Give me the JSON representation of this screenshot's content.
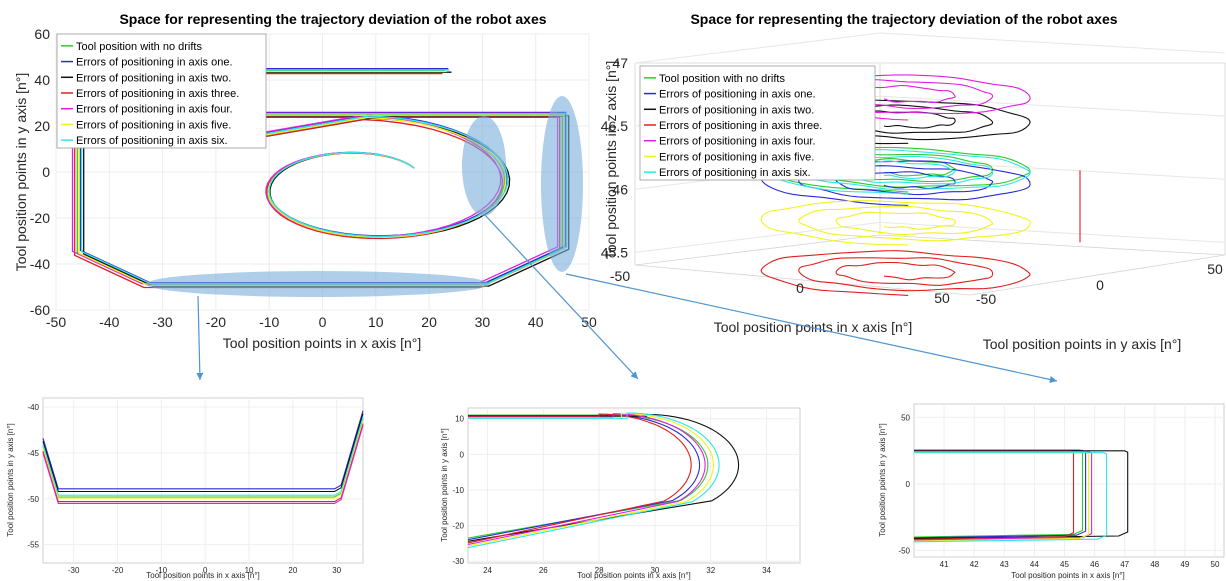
{
  "colors": {
    "no_drift": "#2ecc2e",
    "axis1": "#2b2bd6",
    "axis2": "#111111",
    "axis3": "#e02020",
    "axis4": "#e020e0",
    "axis5": "#f2f21a",
    "axis6": "#2ee6e6",
    "highlight": "#7aaedc",
    "arrow": "#4f95cf"
  },
  "legend": [
    "Tool position with no drifts",
    "Errors of positioning in axis one.",
    "Errors of positioning in axis two.",
    "Errors of positioning in axis three.",
    "Errors of positioning in axis four.",
    "Errors of positioning in axis five.",
    "Errors of positioning in axis six."
  ],
  "chart_data": [
    {
      "id": "main2d",
      "type": "line",
      "title": "Space for representing the trajectory deviation of the robot axes",
      "xlabel": "Tool position points in x axis [n°]",
      "ylabel": "Tool position points in y axis [n°]",
      "xlim": [
        -50,
        50
      ],
      "ylim": [
        -60,
        60
      ],
      "xticks": [
        "-50",
        "-40",
        "-30",
        "-20",
        "-10",
        "0",
        "10",
        "20",
        "30",
        "40",
        "50"
      ],
      "yticks": [
        "60",
        "40",
        "20",
        "0",
        "-20",
        "-40",
        "-60"
      ],
      "grid": true,
      "legend_position": "top-left",
      "offsets": [
        [
          0,
          0
        ],
        [
          0.6,
          0.9
        ],
        [
          1.2,
          -0.6
        ],
        [
          -0.5,
          -1.2
        ],
        [
          -0.9,
          0.5
        ],
        [
          0.3,
          -0.3
        ],
        [
          0.8,
          0.4
        ]
      ],
      "base_path": [
        [
          23,
          44
        ],
        [
          -46,
          44
        ],
        [
          -46,
          -35
        ],
        [
          -33,
          -49
        ],
        [
          30,
          -49
        ],
        [
          45,
          -33
        ],
        [
          45,
          25
        ],
        [
          -35,
          25
        ],
        [
          -35,
          12
        ],
        [
          -22,
          12
        ]
      ],
      "spiral": {
        "center": [
          8,
          -6
        ],
        "r_start": 30,
        "r_end": 12,
        "theta_start": 90,
        "theta_end": -320
      }
    },
    {
      "id": "main3d",
      "type": "line",
      "title": "Space for representing the trajectory deviation of the robot axes",
      "xlabel": "Tool position points in x axis [n°]",
      "ylabel": "Tool position points in y axis [n°]",
      "zlabel": "Tool position points in z axis [n°]",
      "zticks": [
        "47",
        "46.5",
        "46",
        "45.5"
      ],
      "xticks": [
        "-50",
        "0",
        "50"
      ],
      "yticks": [
        "-50",
        "0",
        "50"
      ],
      "zlim": [
        45.4,
        47
      ],
      "grid": true,
      "legend_position": "top-left",
      "layer_z": [
        46.32,
        46.22,
        46.7,
        45.5,
        46.9,
        45.9,
        46.3
      ]
    },
    {
      "id": "inset1",
      "type": "line",
      "xlabel": "Tool position points in x axis [n°]",
      "ylabel": "Tool position points in y axis [n°]",
      "xlim": [
        -37,
        36
      ],
      "ylim": [
        -57,
        -39
      ],
      "xticks": [
        "-30",
        "-20",
        "-10",
        "0",
        "10",
        "20",
        "30"
      ],
      "yticks": [
        "-40",
        "-45",
        "-50",
        "-55"
      ],
      "grid": true,
      "bottom_y": [
        -49.8,
        -48.9,
        -49.2,
        -50.3,
        -50.5,
        -49.9,
        -49.6
      ]
    },
    {
      "id": "inset2",
      "type": "line",
      "xlabel": "Tool position points in x axis [n°]",
      "ylabel": "Tool position points in y axis [n°]",
      "xlim": [
        23.3,
        35.2
      ],
      "ylim": [
        -30.5,
        13
      ],
      "xticks": [
        "24",
        "26",
        "28",
        "30",
        "32",
        "34"
      ],
      "yticks": [
        "10",
        "0",
        "-10",
        "-20",
        "-30"
      ],
      "grid": true,
      "peak_x": [
        31.9,
        31.6,
        33.0,
        31.3,
        31.8,
        32.1,
        32.3
      ]
    },
    {
      "id": "inset3",
      "type": "line",
      "xlabel": "Tool position points in x axis [n°]",
      "ylabel": "Tool position points in y axis [n°]",
      "xlim": [
        40,
        50.3
      ],
      "ylim": [
        -55,
        60
      ],
      "xticks": [
        "41",
        "42",
        "43",
        "44",
        "45",
        "46",
        "47",
        "48",
        "49",
        "50"
      ],
      "yticks": [
        "50",
        "0",
        "-50"
      ],
      "grid": true,
      "step_x": [
        45.6,
        45.7,
        47.1,
        45.3,
        45.9,
        45.8,
        46.4
      ]
    }
  ]
}
